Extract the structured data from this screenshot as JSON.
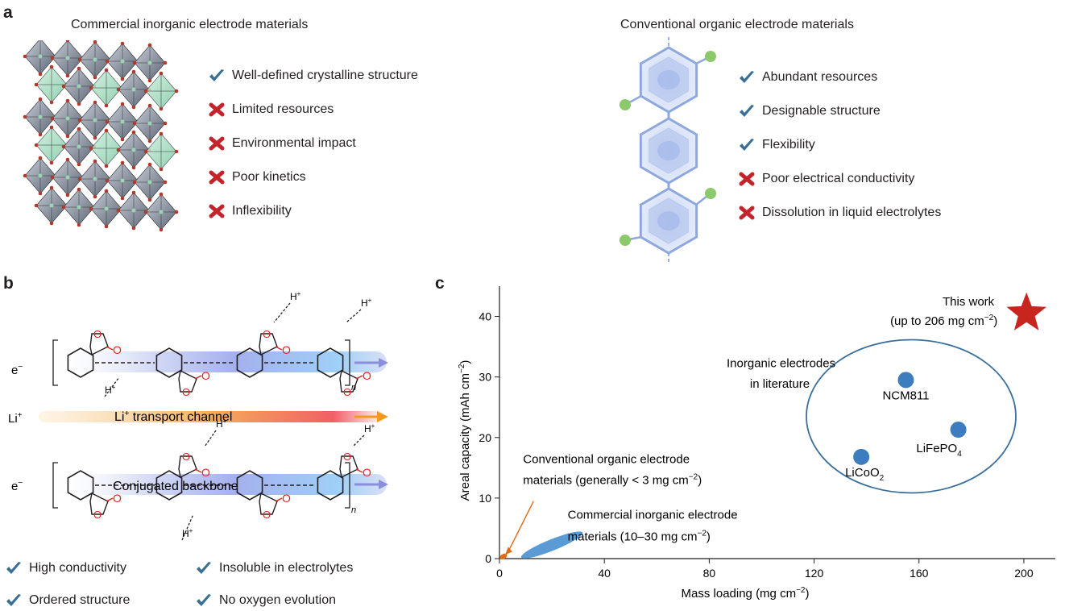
{
  "panel_a": {
    "letter": "a",
    "inorganic": {
      "heading": "Commercial inorganic electrode materials",
      "features": [
        {
          "mark": "check",
          "text": "Well-defined crystalline structure"
        },
        {
          "mark": "cross",
          "text": "Limited resources"
        },
        {
          "mark": "cross",
          "text": "Environmental impact"
        },
        {
          "mark": "cross",
          "text": "Poor kinetics"
        },
        {
          "mark": "cross",
          "text": "Inflexibility"
        }
      ]
    },
    "organic": {
      "heading": "Conventional organic electrode materials",
      "features": [
        {
          "mark": "check",
          "text": "Abundant resources"
        },
        {
          "mark": "check",
          "text": "Designable structure"
        },
        {
          "mark": "check",
          "text": "Flexibility"
        },
        {
          "mark": "cross",
          "text": "Poor electrical conductivity"
        },
        {
          "mark": "cross",
          "text": "Dissolution in liquid electrolytes"
        }
      ]
    }
  },
  "panel_b": {
    "letter": "b",
    "labels": {
      "electron": "e",
      "electron_sup": "−",
      "lithium": "Li",
      "lithium_sup": "+",
      "channel": "Li",
      "channel_sup": "+",
      "channel_rest": " transport channel",
      "backbone": "Conjugated backbone",
      "proton": "H",
      "proton_sup": "+",
      "repeat": "n"
    },
    "features": [
      {
        "mark": "check",
        "text": "High conductivity"
      },
      {
        "mark": "check",
        "text": "Insoluble in electrolytes"
      },
      {
        "mark": "check",
        "text": "Ordered structure"
      },
      {
        "mark": "check",
        "text": "No oxygen evolution"
      }
    ]
  },
  "panel_c": {
    "letter": "c",
    "chart_data": {
      "type": "scatter",
      "xlabel": "Mass loading (mg cm",
      "xlabel_sup": "−2",
      "xlabel_end": ")",
      "ylabel": "Areal capacity (mAh cm",
      "ylabel_sup": "−2",
      "ylabel_end": ")",
      "xlim": [
        0,
        212
      ],
      "ylim": [
        0,
        45
      ],
      "xticks": [
        0,
        40,
        80,
        120,
        160,
        200
      ],
      "yticks": [
        0,
        10,
        20,
        30,
        40
      ],
      "points": [
        {
          "name": "NCM811",
          "x": 155,
          "y": 29.5,
          "label_parts": [
            "NCM811"
          ]
        },
        {
          "name": "LiFePO4",
          "x": 175,
          "y": 21.3,
          "label_parts": [
            "LiFePO",
            "4"
          ]
        },
        {
          "name": "LiCoO2",
          "x": 138,
          "y": 16.8,
          "label_parts": [
            "LiCoO",
            "2"
          ]
        }
      ],
      "this_work": {
        "x": 201,
        "y": 40.5,
        "line1": "This work",
        "line2": "(up to 206 mg cm",
        "line2_sup": "−2",
        "line2_end": ")"
      },
      "group_label": {
        "line1": "Inorganic electrodes",
        "line2": "in literature"
      },
      "inorganic_commercial": {
        "x_range": [
          10,
          30
        ],
        "y_range": [
          0.5,
          4
        ],
        "line1": "Commercial inorganic electrode",
        "line2": "materials (10–30 mg cm",
        "line2_sup": "−2",
        "line2_end": ")"
      },
      "organic_conventional": {
        "x_range": [
          0,
          3
        ],
        "y_range": [
          0,
          0.6
        ],
        "line1": "Conventional organic electrode",
        "line2": "materials (generally < 3 mg cm",
        "line2_sup": "−2",
        "line2_end": ")"
      },
      "colors": {
        "point": "#3d7dbf",
        "ellipse": "#5b9bd5",
        "star": "#c8251f",
        "organic": "#e06b17",
        "group_line": "#3a6f9c"
      }
    }
  },
  "colors": {
    "check": "#3a6f95",
    "cross": "#c3242b",
    "oxygen": "#e8221e",
    "bond": "#231f20"
  }
}
